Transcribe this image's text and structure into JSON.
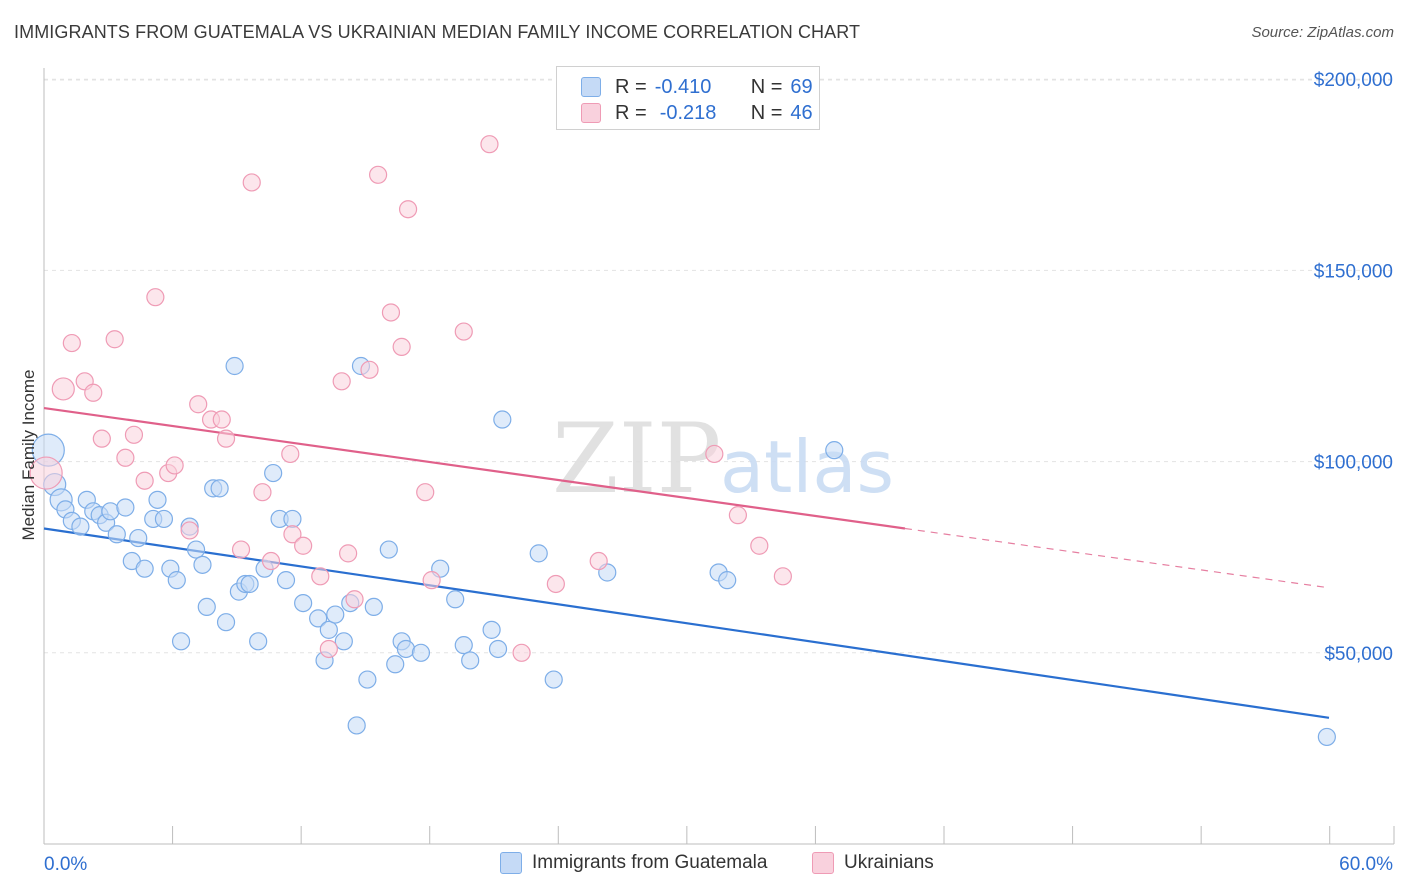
{
  "title": "IMMIGRANTS FROM GUATEMALA VS UKRAINIAN MEDIAN FAMILY INCOME CORRELATION CHART",
  "source": "Source: ZipAtlas.com",
  "watermark": {
    "zip": "ZIP",
    "atlas": "atlas"
  },
  "legend": {
    "r_label": "R =",
    "n_label": "N =",
    "rows": [
      {
        "r": "-0.410",
        "n": "69"
      },
      {
        "r": "-0.218",
        "n": "46"
      }
    ]
  },
  "chart_data": {
    "type": "scatter",
    "title": "IMMIGRANTS FROM GUATEMALA VS UKRAINIAN MEDIAN FAMILY INCOME CORRELATION CHART",
    "xlabel": "",
    "ylabel": "Median Family Income",
    "xlim": [
      0,
      60
    ],
    "ylim": [
      0,
      210000
    ],
    "x_tick_labels": [
      "0.0%",
      "60.0%"
    ],
    "y_ticks": [
      50000,
      100000,
      150000,
      200000
    ],
    "y_tick_labels": [
      "$50,000",
      "$100,000",
      "$150,000",
      "$200,000"
    ],
    "grid": true,
    "legend_position": "top-center",
    "series": [
      {
        "name": "Immigrants from Guatemala",
        "color": "#7eaee8",
        "fill": "#c5daf6",
        "line_color": "#2a6fd0",
        "r": -0.41,
        "n": 69,
        "trend": {
          "x": [
            0,
            60
          ],
          "y": [
            82500,
            33000
          ],
          "dashed_from": null
        },
        "points": [
          [
            0.2,
            103000,
            "L"
          ],
          [
            0.5,
            94000,
            "M"
          ],
          [
            0.8,
            90000,
            "M"
          ],
          [
            1.0,
            87500,
            "S"
          ],
          [
            1.3,
            84500,
            "S"
          ],
          [
            1.7,
            83000,
            "S"
          ],
          [
            2.0,
            90000,
            "S"
          ],
          [
            2.3,
            87000,
            "S"
          ],
          [
            2.6,
            86000,
            "S"
          ],
          [
            2.9,
            84000,
            "S"
          ],
          [
            3.1,
            87000,
            "S"
          ],
          [
            3.4,
            81000,
            "S"
          ],
          [
            3.8,
            88000,
            "S"
          ],
          [
            4.1,
            74000,
            "S"
          ],
          [
            4.4,
            80000,
            "S"
          ],
          [
            4.7,
            72000,
            "S"
          ],
          [
            5.1,
            85000,
            "S"
          ],
          [
            5.3,
            90000,
            "S"
          ],
          [
            5.6,
            85000,
            "S"
          ],
          [
            5.9,
            72000,
            "S"
          ],
          [
            6.2,
            69000,
            "S"
          ],
          [
            6.4,
            53000,
            "S"
          ],
          [
            6.8,
            83000,
            "S"
          ],
          [
            7.1,
            77000,
            "S"
          ],
          [
            7.4,
            73000,
            "S"
          ],
          [
            7.6,
            62000,
            "S"
          ],
          [
            7.9,
            93000,
            "S"
          ],
          [
            8.2,
            93000,
            "S"
          ],
          [
            8.5,
            58000,
            "S"
          ],
          [
            8.9,
            125000,
            "S"
          ],
          [
            9.1,
            66000,
            "S"
          ],
          [
            9.4,
            68000,
            "S"
          ],
          [
            9.6,
            68000,
            "S"
          ],
          [
            10.0,
            53000,
            "S"
          ],
          [
            10.3,
            72000,
            "S"
          ],
          [
            10.7,
            97000,
            "S"
          ],
          [
            11.0,
            85000,
            "S"
          ],
          [
            11.3,
            69000,
            "S"
          ],
          [
            11.6,
            85000,
            "S"
          ],
          [
            12.1,
            63000,
            "S"
          ],
          [
            12.8,
            59000,
            "S"
          ],
          [
            13.1,
            48000,
            "S"
          ],
          [
            13.3,
            56000,
            "S"
          ],
          [
            13.6,
            60000,
            "S"
          ],
          [
            14.0,
            53000,
            "S"
          ],
          [
            14.3,
            63000,
            "S"
          ],
          [
            14.6,
            31000,
            "S"
          ],
          [
            14.8,
            125000,
            "S"
          ],
          [
            15.1,
            43000,
            "S"
          ],
          [
            15.4,
            62000,
            "S"
          ],
          [
            16.1,
            77000,
            "S"
          ],
          [
            16.4,
            47000,
            "S"
          ],
          [
            16.7,
            53000,
            "S"
          ],
          [
            16.9,
            51000,
            "S"
          ],
          [
            17.6,
            50000,
            "S"
          ],
          [
            18.5,
            72000,
            "S"
          ],
          [
            19.2,
            64000,
            "S"
          ],
          [
            19.6,
            52000,
            "S"
          ],
          [
            19.9,
            48000,
            "S"
          ],
          [
            20.9,
            56000,
            "S"
          ],
          [
            21.2,
            51000,
            "S"
          ],
          [
            21.4,
            111000,
            "S"
          ],
          [
            23.1,
            76000,
            "S"
          ],
          [
            23.8,
            43000,
            "S"
          ],
          [
            26.3,
            71000,
            "S"
          ],
          [
            31.5,
            71000,
            "S"
          ],
          [
            31.9,
            69000,
            "S"
          ],
          [
            36.9,
            103000,
            "S"
          ],
          [
            59.9,
            28000,
            "S"
          ]
        ]
      },
      {
        "name": "Ukrainians",
        "color": "#ef9bb5",
        "fill": "#f9d1dd",
        "line_color": "#e0608a",
        "r": -0.218,
        "n": 46,
        "trend": {
          "x": [
            0,
            60
          ],
          "y": [
            114000,
            67000
          ],
          "dashed_from": 40.2
        },
        "points": [
          [
            0.1,
            97000,
            "L"
          ],
          [
            0.9,
            119000,
            "M"
          ],
          [
            1.3,
            131000,
            "S"
          ],
          [
            1.9,
            121000,
            "S"
          ],
          [
            2.3,
            118000,
            "S"
          ],
          [
            2.7,
            106000,
            "S"
          ],
          [
            3.3,
            132000,
            "S"
          ],
          [
            3.8,
            101000,
            "S"
          ],
          [
            4.2,
            107000,
            "S"
          ],
          [
            4.7,
            95000,
            "S"
          ],
          [
            5.2,
            143000,
            "S"
          ],
          [
            5.8,
            97000,
            "S"
          ],
          [
            6.1,
            99000,
            "S"
          ],
          [
            6.8,
            82000,
            "S"
          ],
          [
            7.2,
            115000,
            "S"
          ],
          [
            7.8,
            111000,
            "S"
          ],
          [
            8.3,
            111000,
            "S"
          ],
          [
            8.5,
            106000,
            "S"
          ],
          [
            9.2,
            77000,
            "S"
          ],
          [
            9.7,
            173000,
            "S"
          ],
          [
            10.2,
            92000,
            "S"
          ],
          [
            10.6,
            74000,
            "S"
          ],
          [
            11.5,
            102000,
            "S"
          ],
          [
            11.6,
            81000,
            "S"
          ],
          [
            12.1,
            78000,
            "S"
          ],
          [
            12.9,
            70000,
            "S"
          ],
          [
            13.3,
            51000,
            "S"
          ],
          [
            13.9,
            121000,
            "S"
          ],
          [
            14.2,
            76000,
            "S"
          ],
          [
            14.5,
            64000,
            "S"
          ],
          [
            15.2,
            124000,
            "S"
          ],
          [
            15.6,
            175000,
            "S"
          ],
          [
            16.2,
            139000,
            "S"
          ],
          [
            16.7,
            130000,
            "S"
          ],
          [
            17.0,
            166000,
            "S"
          ],
          [
            17.8,
            92000,
            "S"
          ],
          [
            18.1,
            69000,
            "S"
          ],
          [
            19.6,
            134000,
            "S"
          ],
          [
            20.8,
            183000,
            "S"
          ],
          [
            22.3,
            50000,
            "S"
          ],
          [
            23.9,
            68000,
            "S"
          ],
          [
            25.9,
            74000,
            "S"
          ],
          [
            31.3,
            102000,
            "S"
          ],
          [
            32.4,
            86000,
            "S"
          ],
          [
            33.4,
            78000,
            "S"
          ],
          [
            34.5,
            70000,
            "S"
          ]
        ]
      }
    ]
  }
}
